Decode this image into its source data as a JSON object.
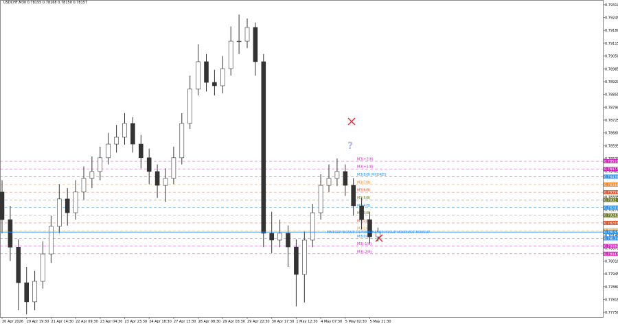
{
  "chart_data": {
    "type": "candlestick",
    "title": "USDCHF,M30  0.78155 0.78168 0.78150 0.78157",
    "categories": [
      "20 Apr 2026",
      null,
      null,
      "20 Apr 19:30",
      null,
      null,
      "21 Apr 14:30",
      null,
      null,
      "22 Apr 09:30",
      null,
      null,
      "23 Apr 04:30",
      null,
      null,
      "23 Apr 23:30",
      null,
      null,
      "24 Apr 18:30",
      null,
      null,
      "27 Apr 13:30",
      null,
      null,
      "28 Apr 08:30",
      null,
      null,
      "29 Apr 03:30",
      null,
      null,
      "29 Apr 22:30",
      null,
      null,
      "30 Apr 17:30",
      null,
      null,
      "1 May 12:30",
      null,
      null,
      "4 May 07:30",
      null,
      null,
      "5 May 02:30",
      null,
      null,
      "5 May 21:30",
      null
    ],
    "ohlc": [
      [
        0.7836,
        0.7842,
        0.7815,
        0.7822
      ],
      [
        0.7822,
        0.7829,
        0.7801,
        0.7808
      ],
      [
        0.7808,
        0.7812,
        0.7776,
        0.779
      ],
      [
        0.779,
        0.7798,
        0.7774,
        0.77803
      ],
      [
        0.77803,
        0.7796,
        0.7776,
        0.77907
      ],
      [
        0.77907,
        0.7811,
        0.7787,
        0.78046
      ],
      [
        0.78046,
        0.7824,
        0.78,
        0.78186
      ],
      [
        0.78186,
        0.784,
        0.7815,
        0.78325
      ],
      [
        0.78325,
        0.7838,
        0.7819,
        0.78255
      ],
      [
        0.78255,
        0.7842,
        0.7822,
        0.7836
      ],
      [
        0.7836,
        0.7849,
        0.7832,
        0.78429
      ],
      [
        0.78429,
        0.7854,
        0.7838,
        0.78464
      ],
      [
        0.78464,
        0.7859,
        0.7842,
        0.78534
      ],
      [
        0.78534,
        0.7866,
        0.785,
        0.78603
      ],
      [
        0.78603,
        0.787,
        0.7856,
        0.78638
      ],
      [
        0.78638,
        0.7876,
        0.786,
        0.78708
      ],
      [
        0.78708,
        0.7874,
        0.7856,
        0.78603
      ],
      [
        0.78603,
        0.7865,
        0.7848,
        0.78534
      ],
      [
        0.78534,
        0.7858,
        0.784,
        0.78464
      ],
      [
        0.78464,
        0.785,
        0.7833,
        0.78394
      ],
      [
        0.78394,
        0.7848,
        0.7831,
        0.78429
      ],
      [
        0.78429,
        0.7859,
        0.784,
        0.78534
      ],
      [
        0.78534,
        0.7876,
        0.785,
        0.78708
      ],
      [
        0.78708,
        0.7895,
        0.7868,
        0.78882
      ],
      [
        0.78882,
        0.7911,
        0.7885,
        0.79021
      ],
      [
        0.79021,
        0.7906,
        0.7887,
        0.78916
      ],
      [
        0.78916,
        0.7898,
        0.7885,
        0.78899
      ],
      [
        0.78899,
        0.7905,
        0.7886,
        0.78986
      ],
      [
        0.78986,
        0.792,
        0.7895,
        0.79125
      ],
      [
        0.79125,
        0.7926,
        0.7906,
        0.79125
      ],
      [
        0.79125,
        0.7924,
        0.7909,
        0.79195
      ],
      [
        0.79195,
        0.7922,
        0.7895,
        0.79021
      ],
      [
        0.79021,
        0.7906,
        0.7808,
        0.78151
      ],
      [
        0.78151,
        0.7826,
        0.7805,
        0.78116
      ],
      [
        0.78116,
        0.7822,
        0.7808,
        0.78151
      ],
      [
        0.78151,
        0.7819,
        0.7798,
        0.78081
      ],
      [
        0.78081,
        0.7812,
        0.7778,
        0.77942
      ],
      [
        0.77942,
        0.7816,
        0.778,
        0.78116
      ],
      [
        0.78116,
        0.783,
        0.7808,
        0.78255
      ],
      [
        0.78255,
        0.7845,
        0.7822,
        0.78394
      ],
      [
        0.78394,
        0.785,
        0.7836,
        0.78429
      ],
      [
        0.78429,
        0.7853,
        0.7839,
        0.78464
      ],
      [
        0.78464,
        0.785,
        0.7834,
        0.78394
      ],
      [
        0.78394,
        0.7843,
        0.7824,
        0.7829
      ],
      [
        0.7829,
        0.7833,
        0.7817,
        0.7822
      ],
      [
        0.7822,
        0.7826,
        0.781,
        0.78133
      ],
      [
        0.78133,
        0.7818,
        0.7811,
        0.78157
      ]
    ],
    "ylim": [
      0.77726,
      0.79334
    ],
    "yticks": [
      {
        "value": 0.7931,
        "label": "0.79310"
      },
      0.79245,
      {
        "value": 0.7918,
        "label": "0.79180"
      },
      0.79115,
      {
        "value": 0.7905,
        "label": "0.79050"
      },
      0.78985,
      {
        "value": 0.7892,
        "label": "0.78920"
      },
      0.78855,
      {
        "value": 0.7879,
        "label": "0.78790"
      },
      0.78725,
      {
        "value": 0.7866,
        "label": "0.78660"
      },
      0.78595,
      {
        "value": 0.7853,
        "label": "0.78530"
      },
      0.78465,
      {
        "value": 0.784,
        "label": "0.78400"
      },
      0.78335,
      {
        "value": 0.7827,
        "label": "0.78270"
      },
      0.78205,
      {
        "value": 0.7814,
        "label": "0.78140"
      },
      0.78075,
      {
        "value": 0.7801,
        "label": "0.78010"
      },
      0.77945,
      {
        "value": 0.7788,
        "label": "0.77880"
      },
      0.77815,
      {
        "value": 0.7775,
        "label": "0.77750"
      }
    ],
    "levels": [
      {
        "name": "M3(+2/8)",
        "value": 0.78516,
        "color": "#d81fc0"
      },
      {
        "name": "M3(+1/8)",
        "value": 0.78477,
        "color": "#d81fc0"
      },
      {
        "name": "M3(8/8) MXDRES",
        "value": 0.78438,
        "color": "#1e90ff"
      },
      {
        "name": "M3(7/8)",
        "value": 0.78398,
        "color": "#f08020"
      },
      {
        "name": "M3(6/8)",
        "value": 0.78359,
        "color": "#e0502a"
      },
      {
        "name": "M3(5/8)",
        "value": 0.7832,
        "color": "#6b7a1f"
      },
      {
        "name": "M3(4/8)",
        "value": 0.78281,
        "color": "#1e90ff"
      },
      {
        "name": "M3(3/8)",
        "value": 0.78242,
        "color": "#6b7a1f"
      },
      {
        "name": "M3(2/8)",
        "value": 0.78203,
        "color": "#e0502a"
      },
      {
        "name": "M3(1/8)",
        "value": 0.78164,
        "color": "#f0a020"
      },
      {
        "name": "M3(0/8)",
        "value": 0.78125,
        "color": "#1e90ff"
      },
      {
        "name": "M3(-1/8)",
        "value": 0.78086,
        "color": "#d81fc0"
      },
      {
        "name": "M3(-2/8)",
        "value": 0.78047,
        "color": "#d81fc0"
      }
    ],
    "current_price": {
      "value": 0.78157,
      "color": "#1e90ff"
    },
    "annotation": "MN1SUP W1SUP D1PIVOT H4SUP H1SUP M30PIVOT M30SUP"
  }
}
